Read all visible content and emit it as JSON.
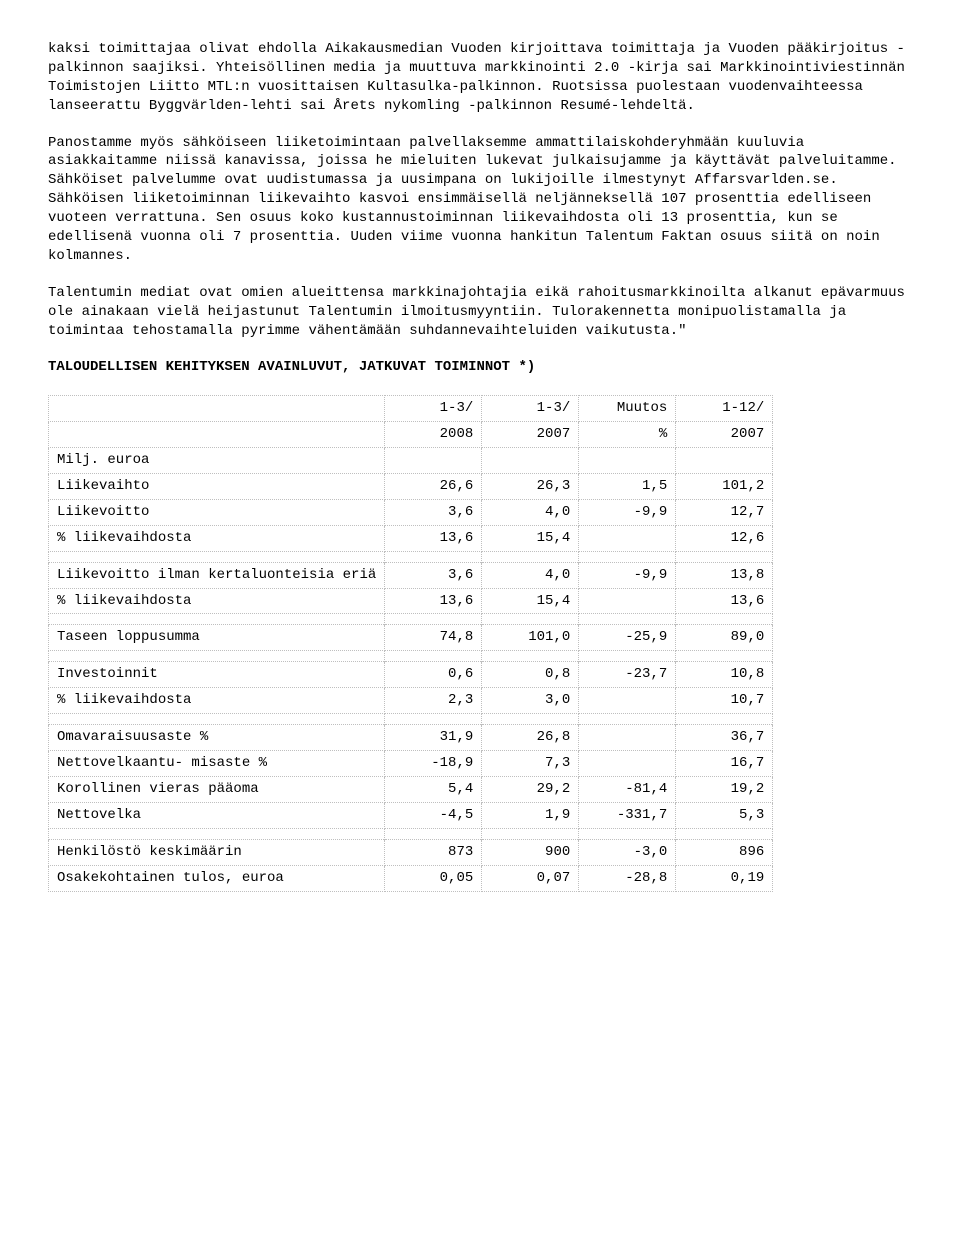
{
  "paragraphs": {
    "p1": "kaksi toimittajaa olivat ehdolla Aikakausmedian Vuoden kirjoittava toimittaja ja Vuoden pääkirjoitus -palkinnon saajiksi. Yhteisöllinen media ja muuttuva markkinointi 2.0 -kirja sai Markkinointiviestinnän Toimistojen Liitto MTL:n vuosittaisen Kultasulka-palkinnon. Ruotsissa puolestaan vuodenvaihteessa lanseerattu Byggvärlden-lehti sai Årets nykomling -palkinnon Resumé-lehdeltä.",
    "p2": "Panostamme myös sähköiseen liiketoimintaan palvellaksemme ammattilaiskohderyhmään kuuluvia asiakkaitamme niissä kanavissa, joissa he mieluiten lukevat julkaisujamme ja käyttävät palveluitamme. Sähköiset palvelumme ovat uudistumassa ja uusimpana on lukijoille ilmestynyt Affarsvarlden.se. Sähköisen liiketoiminnan liikevaihto kasvoi ensimmäisellä neljänneksellä 107 prosenttia edelliseen vuoteen verrattuna. Sen osuus koko kustannustoiminnan liikevaihdosta oli 13 prosenttia, kun se edellisenä vuonna oli 7 prosenttia. Uuden viime vuonna hankitun Talentum Faktan osuus siitä on noin kolmannes.",
    "p3": "Talentumin mediat ovat omien alueittensa markkinajohtajia eikä rahoitusmarkkinoilta alkanut epävarmuus ole ainakaan vielä heijastunut Talentumin ilmoitusmyyntiin. Tulorakennetta monipuolistamalla ja toimintaa tehostamalla pyrimme vähentämään suhdannevaihteluiden vaikutusta.\""
  },
  "tableTitle": "TALOUDELLISEN KEHITYKSEN AVAINLUVUT, JATKUVAT TOIMINNOT *)",
  "table": {
    "header": {
      "c1a": "1-3/",
      "c1b": "2008",
      "c2a": "1-3/",
      "c2b": "2007",
      "c3a": "Muutos",
      "c3b": "%",
      "c4a": "1-12/",
      "c4b": "2007"
    },
    "rows": {
      "r0": {
        "label": "Milj. euroa",
        "v1": "",
        "v2": "",
        "v3": "",
        "v4": ""
      },
      "r1": {
        "label": "Liikevaihto",
        "v1": "26,6",
        "v2": "26,3",
        "v3": "1,5",
        "v4": "101,2"
      },
      "r2": {
        "label": "Liikevoitto",
        "v1": "3,6",
        "v2": "4,0",
        "v3": "-9,9",
        "v4": "12,7"
      },
      "r3": {
        "label": "% liikevaihdosta",
        "v1": "13,6",
        "v2": "15,4",
        "v3": "",
        "v4": "12,6"
      },
      "r4": {
        "label": "Liikevoitto ilman\nkertaluonteisia\neriä",
        "v1": "3,6",
        "v2": "4,0",
        "v3": "-9,9",
        "v4": "13,8"
      },
      "r5": {
        "label": "% liikevaihdosta",
        "v1": "13,6",
        "v2": "15,4",
        "v3": "",
        "v4": "13,6"
      },
      "r6": {
        "label": "Taseen loppusumma",
        "v1": "74,8",
        "v2": "101,0",
        "v3": "-25,9",
        "v4": "89,0"
      },
      "r7": {
        "label": "Investoinnit",
        "v1": "0,6",
        "v2": "0,8",
        "v3": "-23,7",
        "v4": "10,8"
      },
      "r8": {
        "label": "% liikevaihdosta",
        "v1": "2,3",
        "v2": "3,0",
        "v3": "",
        "v4": "10,7"
      },
      "r9": {
        "label": "Omavaraisuusaste %",
        "v1": "31,9",
        "v2": "26,8",
        "v3": "",
        "v4": "36,7"
      },
      "r10": {
        "label": "Nettovelkaantu-\nmisaste %",
        "v1": "-18,9",
        "v2": "7,3",
        "v3": "",
        "v4": "16,7"
      },
      "r11": {
        "label": "Korollinen vieras\npääoma",
        "v1": "5,4",
        "v2": "29,2",
        "v3": "-81,4",
        "v4": "19,2"
      },
      "r12": {
        "label": "Nettovelka",
        "v1": "-4,5",
        "v2": "1,9",
        "v3": "-331,7",
        "v4": "5,3"
      },
      "r13": {
        "label": "Henkilöstö\nkeskimäärin",
        "v1": "873",
        "v2": "900",
        "v3": "-3,0",
        "v4": "896"
      },
      "r14": {
        "label": "Osakekohtainen\ntulos, euroa",
        "v1": "0,05",
        "v2": "0,07",
        "v3": "-28,8",
        "v4": "0,19"
      }
    }
  }
}
